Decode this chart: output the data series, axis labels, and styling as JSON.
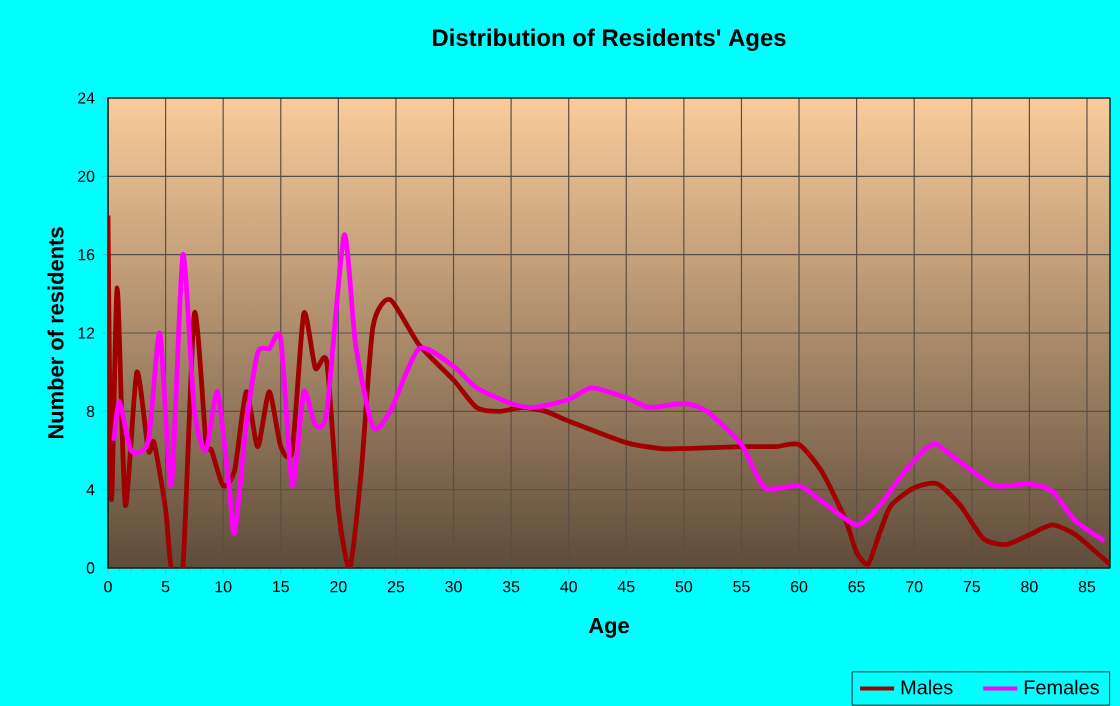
{
  "chart_data": {
    "type": "line",
    "title": "Distribution of Residents' Ages",
    "xlabel": "Age",
    "ylabel": "Number of residents",
    "xlim": [
      0,
      87
    ],
    "xticks": [
      0,
      5,
      10,
      15,
      20,
      25,
      30,
      35,
      40,
      45,
      50,
      55,
      60,
      65,
      70,
      75,
      80,
      85
    ],
    "ylim": [
      0,
      24
    ],
    "yticks": [
      0,
      4,
      8,
      12,
      16,
      20,
      24
    ],
    "grid": true,
    "legend": "bottom right",
    "marker": "none",
    "line_style": "solid",
    "series": [
      {
        "name": "Males",
        "color": "#a00000",
        "x": [
          0,
          0.3,
          0.8,
          1.5,
          2.5,
          3.5,
          4,
          5,
          5.5,
          6.5,
          7.5,
          8.5,
          9,
          10,
          11,
          12,
          13,
          14,
          15,
          16,
          17,
          18,
          19,
          20,
          21,
          22,
          23,
          24.5,
          27,
          30,
          32,
          34,
          36,
          38,
          40,
          45,
          48,
          50,
          55,
          58,
          60,
          62,
          64,
          65,
          66,
          67,
          68,
          70,
          72,
          74,
          76,
          78,
          80,
          82,
          84,
          86,
          87
        ],
        "values": [
          18,
          3.5,
          14.3,
          3.2,
          10,
          6,
          6.4,
          3,
          0,
          0,
          13,
          6.5,
          6,
          4.2,
          5,
          9,
          6.2,
          9,
          6.2,
          6,
          13,
          10.2,
          10.5,
          3,
          0,
          5,
          12.3,
          13.7,
          11.4,
          9.6,
          8.2,
          8,
          8.2,
          8,
          7.5,
          6.4,
          6.1,
          6.1,
          6.2,
          6.2,
          6.3,
          4.9,
          2.5,
          0.8,
          0.2,
          1.8,
          3.2,
          4.1,
          4.3,
          3.2,
          1.5,
          1.2,
          1.7,
          2.2,
          1.7,
          0.7,
          0.2
        ]
      },
      {
        "name": "Females",
        "color": "#ff00ff",
        "x": [
          0.5,
          1,
          2,
          3.5,
          4.5,
          5.5,
          6.5,
          7.5,
          8.5,
          9.5,
          10.5,
          11,
          12,
          13,
          14,
          15,
          16,
          17,
          18,
          19,
          20.5,
          21.5,
          23,
          24.5,
          27,
          30,
          32,
          35,
          37,
          40,
          42,
          45,
          47,
          50,
          52,
          55,
          57,
          60,
          62,
          65,
          67,
          69,
          71,
          72,
          74,
          77,
          80,
          82,
          84,
          86.5
        ],
        "values": [
          6.5,
          8.5,
          6,
          6.5,
          12,
          4.2,
          16,
          8,
          6,
          9,
          4.2,
          1.8,
          7.3,
          11,
          11.2,
          11.7,
          4.2,
          9,
          7.3,
          8,
          17,
          11.4,
          7.2,
          8,
          11.2,
          10.3,
          9.2,
          8.4,
          8.2,
          8.6,
          9.2,
          8.7,
          8.2,
          8.4,
          8,
          6.3,
          4.1,
          4.2,
          3.4,
          2.2,
          3.2,
          4.8,
          6.1,
          6.3,
          5.4,
          4.2,
          4.3,
          3.9,
          2.4,
          1.4
        ]
      }
    ]
  }
}
